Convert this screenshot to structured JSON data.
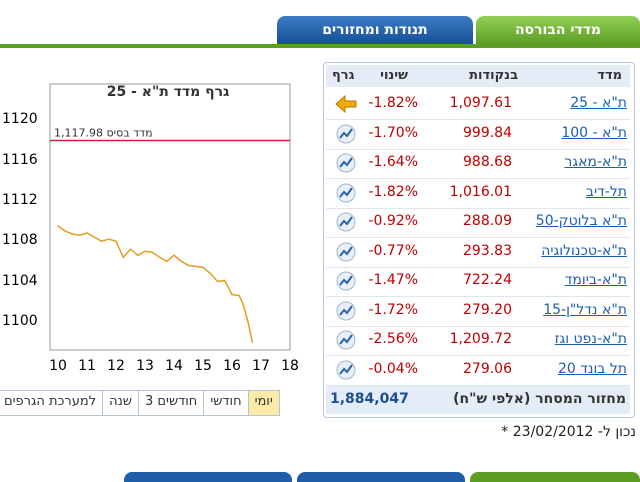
{
  "tabs": {
    "indices": "מדדי הבורסה",
    "movers": "תנודות ומחזורים"
  },
  "chart": {
    "title": "גרף מדד ת\"א - 25",
    "base_label": "1,117.98 מדד בסיס"
  },
  "chart_data": {
    "type": "line",
    "title": "גרף מדד ת\"א - 25",
    "x_ticks": [
      "10",
      "11",
      "12",
      "13",
      "14",
      "15",
      "16",
      "17",
      "18"
    ],
    "y_ticks": [
      "1120",
      "1116",
      "1112",
      "1108",
      "1104",
      "1100"
    ],
    "xlim": [
      10,
      18
    ],
    "ylim": [
      1098,
      1122
    ],
    "base_value": 1117.98,
    "base_label": "1,117.98 מדד בסיס",
    "series": [
      {
        "x": [
          10.0,
          10.25,
          10.5,
          10.75,
          11.0,
          11.25,
          11.5,
          11.75,
          12.0,
          12.25,
          12.5,
          12.75,
          13.0,
          13.25,
          13.5,
          13.75,
          14.0,
          14.25,
          14.5,
          14.75,
          15.0,
          15.25,
          15.5,
          15.75,
          16.0,
          16.25,
          16.4,
          16.55,
          16.7
        ],
        "y": [
          1109.5,
          1109.0,
          1108.7,
          1108.6,
          1108.8,
          1108.4,
          1108.0,
          1108.2,
          1108.0,
          1106.4,
          1107.2,
          1106.6,
          1107.0,
          1106.9,
          1106.4,
          1106.0,
          1106.6,
          1106.0,
          1105.6,
          1105.5,
          1105.4,
          1104.8,
          1104.0,
          1104.1,
          1102.7,
          1102.6,
          1101.6,
          1100.0,
          1098.0
        ]
      }
    ],
    "grid": false
  },
  "ranges": [
    "יומי",
    "חודשי",
    "3 חודשים",
    "שנה",
    "למערכת הגרפים"
  ],
  "table": {
    "headers": {
      "index": "מדד",
      "points": "בנקודות",
      "change": "שינוי",
      "graph": "גרף"
    },
    "rows": [
      {
        "name": "ת\"א - 25",
        "points": "1,097.61",
        "change": "-1.82%",
        "icon": "arrow-left-icon"
      },
      {
        "name": "ת\"א - 100",
        "points": "999.84",
        "change": "-1.70%",
        "icon": "chart-icon"
      },
      {
        "name": "ת\"א-מאגר",
        "points": "988.68",
        "change": "-1.64%",
        "icon": "chart-icon"
      },
      {
        "name": "תל-דיב",
        "points": "1,016.01",
        "change": "-1.82%",
        "icon": "chart-icon"
      },
      {
        "name": "ת\"א בלוטק-50",
        "points": "288.09",
        "change": "-0.92%",
        "icon": "chart-icon"
      },
      {
        "name": "ת\"א-טכנולוגיה",
        "points": "293.83",
        "change": "-0.77%",
        "icon": "chart-icon"
      },
      {
        "name": "ת\"א-ביומד",
        "points": "722.24",
        "change": "-1.47%",
        "icon": "chart-icon"
      },
      {
        "name": "ת\"א נדל\"ן-15",
        "points": "279.20",
        "change": "-1.72%",
        "icon": "chart-icon"
      },
      {
        "name": "ת\"א-נפט וגז",
        "points": "1,209.72",
        "change": "-2.56%",
        "icon": "chart-icon"
      },
      {
        "name": "תל בונד 20",
        "points": "279.06",
        "change": "-0.04%",
        "icon": "chart-icon"
      }
    ],
    "turnover_label": "מחזור המסחר (אלפי ש\"ח)",
    "turnover_value": "1,884,047"
  },
  "note": "* נכון ל- 23/02/2012",
  "colors": {
    "tab_green": "#5c9e23",
    "tab_blue": "#1f5fa8",
    "line": "#e0a020",
    "negative": "#c00000",
    "link": "#1a5fb0"
  }
}
